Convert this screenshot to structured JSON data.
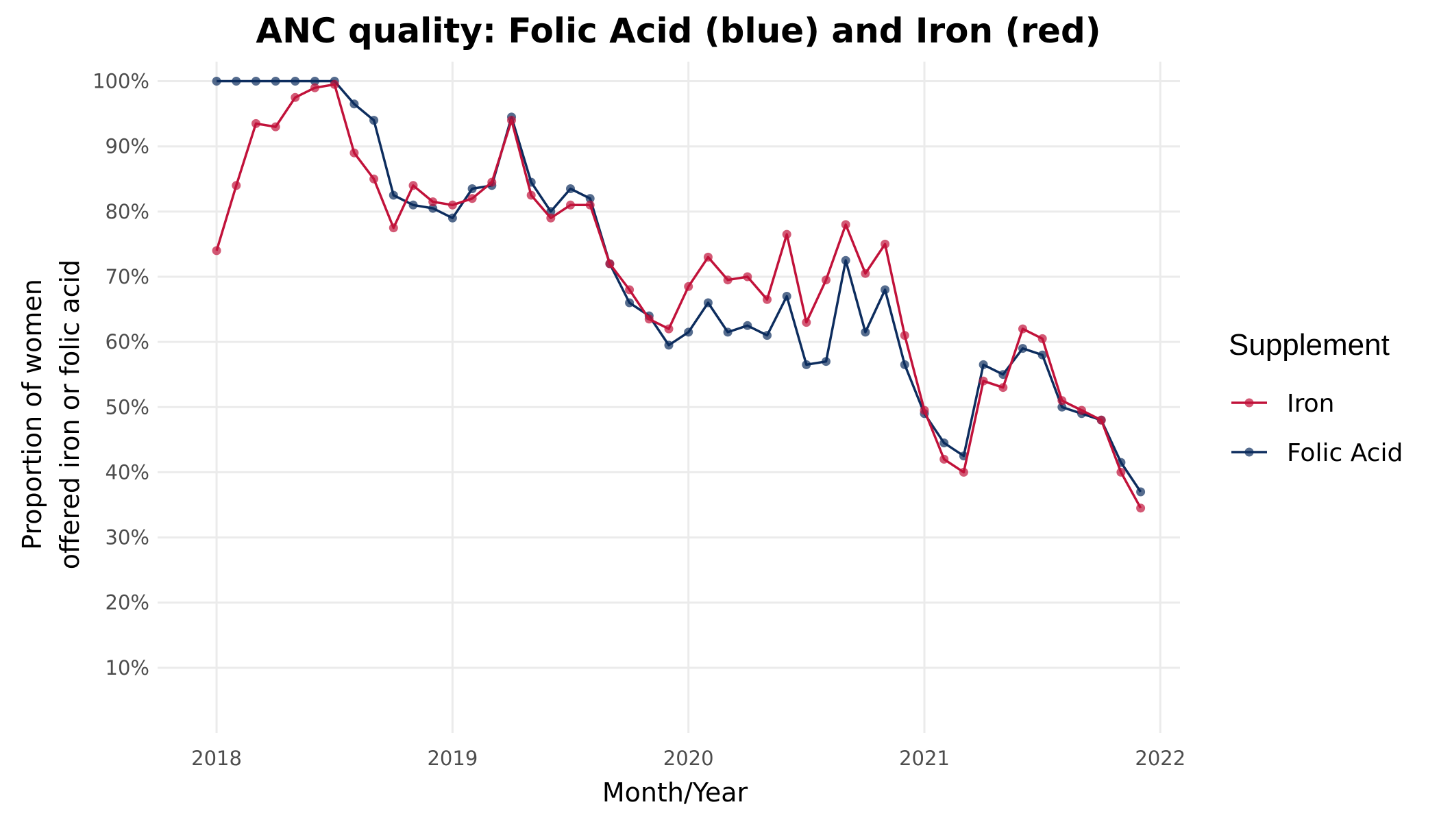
{
  "chart_data": {
    "type": "line",
    "title": "ANC quality: Folic Acid (blue) and Iron (red)",
    "xlabel": "Month/Year",
    "ylabel_lines": [
      "Proportion of women",
      "offered iron or folic acid"
    ],
    "x_ticks": [
      "2018",
      "2019",
      "2020",
      "2021",
      "2022"
    ],
    "y_ticks": [
      "10%",
      "20%",
      "30%",
      "40%",
      "50%",
      "60%",
      "70%",
      "80%",
      "90%",
      "100%"
    ],
    "xlim": [
      "2017-10",
      "2022-02"
    ],
    "ylim": [
      0,
      1.03
    ],
    "grid": true,
    "legend": {
      "title": "Supplement",
      "position": "right"
    },
    "x": [
      "2018-01",
      "2018-02",
      "2018-03",
      "2018-04",
      "2018-05",
      "2018-06",
      "2018-07",
      "2018-08",
      "2018-09",
      "2018-10",
      "2018-11",
      "2018-12",
      "2019-01",
      "2019-02",
      "2019-03",
      "2019-04",
      "2019-05",
      "2019-06",
      "2019-07",
      "2019-08",
      "2019-09",
      "2019-10",
      "2019-11",
      "2019-12",
      "2020-01",
      "2020-02",
      "2020-03",
      "2020-04",
      "2020-05",
      "2020-06",
      "2020-07",
      "2020-08",
      "2020-09",
      "2020-10",
      "2020-11",
      "2020-12",
      "2021-01",
      "2021-02",
      "2021-03",
      "2021-04",
      "2021-05",
      "2021-06",
      "2021-07",
      "2021-08",
      "2021-09",
      "2021-10",
      "2021-11",
      "2021-12"
    ],
    "series": [
      {
        "name": "Iron",
        "color": "#c1123a",
        "values": [
          0.74,
          0.84,
          0.935,
          0.93,
          0.975,
          0.99,
          0.995,
          0.89,
          0.85,
          0.775,
          0.84,
          0.815,
          0.81,
          0.82,
          0.845,
          0.94,
          0.825,
          0.79,
          0.81,
          0.81,
          0.72,
          0.68,
          0.635,
          0.62,
          0.685,
          0.73,
          0.695,
          0.7,
          0.665,
          0.765,
          0.63,
          0.695,
          0.78,
          0.705,
          0.75,
          0.61,
          0.495,
          0.42,
          0.4,
          0.54,
          0.53,
          0.62,
          0.605,
          0.51,
          0.495,
          0.48,
          0.4,
          0.345
        ]
      },
      {
        "name": "Folic Acid",
        "color": "#0d2d5e",
        "values": [
          1.0,
          1.0,
          1.0,
          1.0,
          1.0,
          1.0,
          1.0,
          0.965,
          0.94,
          0.825,
          0.81,
          0.805,
          0.79,
          0.835,
          0.84,
          0.945,
          0.845,
          0.8,
          0.835,
          0.82,
          0.72,
          0.66,
          0.64,
          0.595,
          0.615,
          0.66,
          0.615,
          0.625,
          0.61,
          0.67,
          0.565,
          0.57,
          0.725,
          0.615,
          0.68,
          0.565,
          0.49,
          0.445,
          0.425,
          0.565,
          0.55,
          0.59,
          0.58,
          0.5,
          0.49,
          0.48,
          0.415,
          0.37
        ]
      }
    ],
    "legend_order": [
      "Iron",
      "Folic Acid"
    ]
  }
}
